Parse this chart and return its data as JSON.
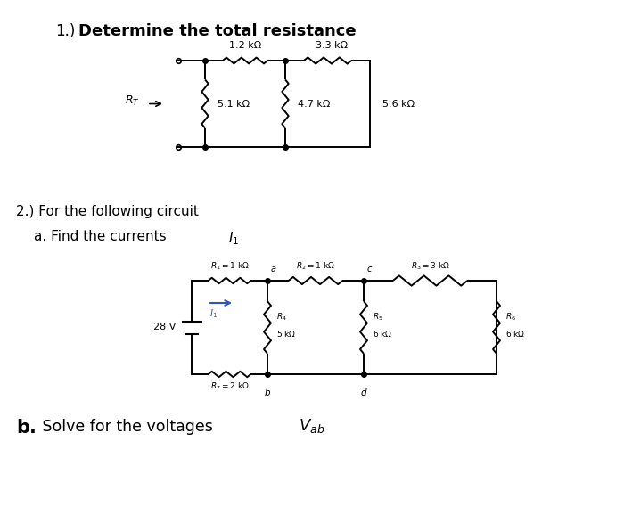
{
  "bg_color": "#ffffff",
  "title1_prefix": "1.) ",
  "title1_bold": "Determine the total resistance",
  "section2_line1": "2.) For the following circuit",
  "section2_line2a": "    a. Find the currents ",
  "section2_I1": "I",
  "section2_I1_sub": "1",
  "sectionb_bold": "b.",
  "sectionb_text": " Solve for the voltages ",
  "sectionb_V": "V",
  "sectionb_sub": "ab",
  "c1_R1": "1.2 kΩ",
  "c1_R2": "3.3 kΩ",
  "c1_R3": "5.1 kΩ",
  "c1_R4": "4.7 kΩ",
  "c1_R5": "5.6 kΩ",
  "c2_R1": "R",
  "c2_R1_sub": "1",
  "c2_R1_val": " = 1 kΩ",
  "c2_R2_val": " = 1 kΩ",
  "c2_R3_val": " = 3 kΩ",
  "c2_R4": "R",
  "c2_R4_sub": "4",
  "c2_R4_val": "5 kΩ",
  "c2_R5_sub": "5",
  "c2_R5_val": "6 kΩ",
  "c2_R6_sub": "6",
  "c2_R6_val": "6 kΩ",
  "c2_R7_val": " = 2 kΩ",
  "c2_V": "28 V",
  "c2_na": "a",
  "c2_nb": "b",
  "c2_nc": "c",
  "c2_nd": "d",
  "c2_I1": "I",
  "blue_color": "#3355bb"
}
